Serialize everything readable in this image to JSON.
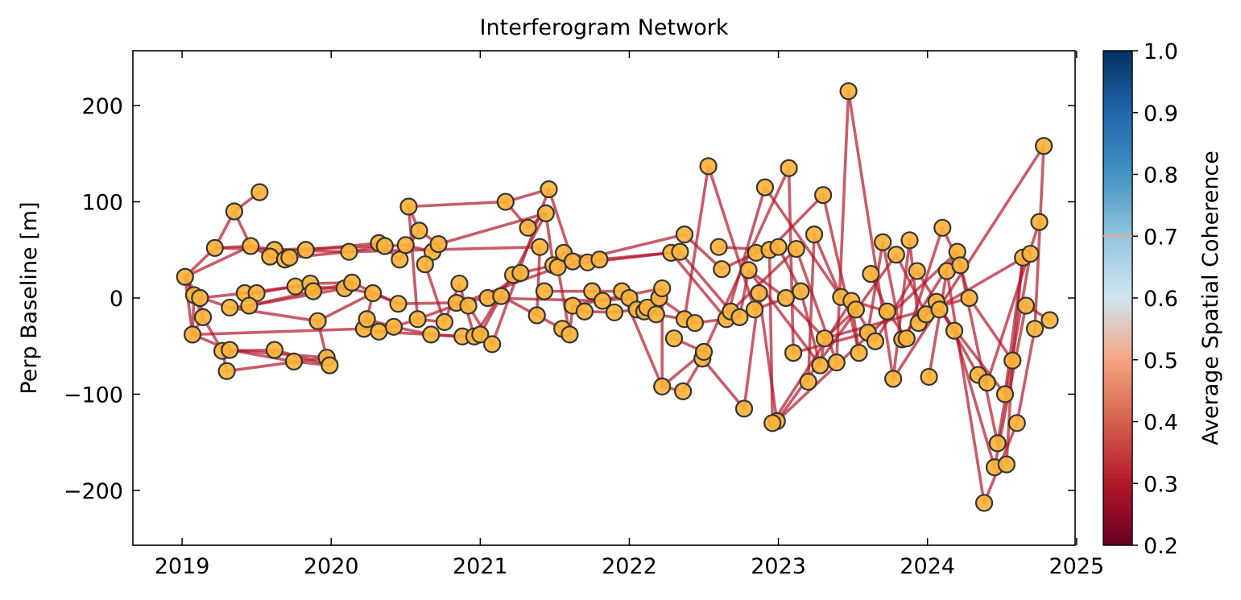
{
  "chart_data": {
    "type": "scatter",
    "title": "Interferogram Network",
    "xlabel": "",
    "ylabel": "Perp Baseline [m]",
    "xlim": [
      2018.67,
      2024.99
    ],
    "ylim": [
      -257,
      257
    ],
    "x_ticks": [
      2019,
      2020,
      2021,
      2022,
      2023,
      2024,
      2025
    ],
    "y_ticks": [
      -200,
      -100,
      0,
      100,
      200
    ],
    "y_tick_labels": [
      "−200",
      "−100",
      "0",
      "100",
      "200"
    ],
    "grid": false,
    "colorbar": {
      "label": "Average Spatial Coherence",
      "range": [
        0.2,
        1.0
      ],
      "ticks": [
        "0.2",
        "0.3",
        "0.4",
        "0.5",
        "0.6",
        "0.7",
        "0.8",
        "0.9",
        "1.0"
      ],
      "colormap": "RdBu",
      "masked_above": 0.7,
      "stops": [
        "#67001f",
        "#b2182b",
        "#d6604d",
        "#f4a582",
        "#d1e5f0",
        "#92c5de",
        "#4393c3",
        "#2166ac",
        "#053061"
      ]
    },
    "point_color": "#fbb33a",
    "point_edge_color": "#333333",
    "edge_color": "#b2182b",
    "acquisitions": [
      [
        2019.02,
        22
      ],
      [
        2019.08,
        3
      ],
      [
        2019.12,
        0
      ],
      [
        2019.22,
        52
      ],
      [
        2019.35,
        90
      ],
      [
        2019.52,
        110
      ],
      [
        2019.42,
        5
      ],
      [
        2019.5,
        5
      ],
      [
        2019.32,
        -10
      ],
      [
        2019.45,
        -8
      ],
      [
        2019.14,
        -20
      ],
      [
        2019.07,
        -38
      ],
      [
        2019.27,
        -55
      ],
      [
        2019.32,
        -54
      ],
      [
        2019.3,
        -76
      ],
      [
        2019.62,
        -54
      ],
      [
        2019.75,
        -66
      ],
      [
        2019.97,
        -62
      ],
      [
        2019.99,
        -70
      ],
      [
        2019.91,
        -24
      ],
      [
        2019.76,
        12
      ],
      [
        2019.86,
        15
      ],
      [
        2019.88,
        7
      ],
      [
        2020.09,
        10
      ],
      [
        2020.14,
        16
      ],
      [
        2019.46,
        54
      ],
      [
        2019.62,
        50
      ],
      [
        2019.59,
        43
      ],
      [
        2019.69,
        40
      ],
      [
        2019.72,
        42
      ],
      [
        2019.83,
        50
      ],
      [
        2020.12,
        48
      ],
      [
        2020.32,
        57
      ],
      [
        2020.36,
        54
      ],
      [
        2020.46,
        40
      ],
      [
        2020.5,
        55
      ],
      [
        2020.59,
        70
      ],
      [
        2020.68,
        48
      ],
      [
        2020.72,
        56
      ],
      [
        2020.63,
        35
      ],
      [
        2020.52,
        95
      ],
      [
        2020.28,
        5
      ],
      [
        2020.45,
        -6
      ],
      [
        2020.22,
        -32
      ],
      [
        2020.24,
        -22
      ],
      [
        2020.32,
        -35
      ],
      [
        2020.42,
        -30
      ],
      [
        2020.58,
        -22
      ],
      [
        2020.67,
        -38
      ],
      [
        2020.76,
        -25
      ],
      [
        2020.84,
        -5
      ],
      [
        2020.92,
        -8
      ],
      [
        2020.86,
        15
      ],
      [
        2020.88,
        -40
      ],
      [
        2020.96,
        -40
      ],
      [
        2021.0,
        -38
      ],
      [
        2021.05,
        0
      ],
      [
        2021.08,
        -48
      ],
      [
        2021.14,
        2
      ],
      [
        2021.22,
        24
      ],
      [
        2021.27,
        26
      ],
      [
        2021.17,
        100
      ],
      [
        2021.32,
        73
      ],
      [
        2021.44,
        88
      ],
      [
        2021.46,
        113
      ],
      [
        2021.4,
        53
      ],
      [
        2021.38,
        -18
      ],
      [
        2021.43,
        7
      ],
      [
        2021.49,
        34
      ],
      [
        2021.52,
        32
      ],
      [
        2021.56,
        47
      ],
      [
        2021.62,
        38
      ],
      [
        2021.72,
        37
      ],
      [
        2021.8,
        40
      ],
      [
        2021.55,
        -32
      ],
      [
        2021.6,
        -38
      ],
      [
        2021.62,
        -8
      ],
      [
        2021.7,
        -14
      ],
      [
        2021.75,
        7
      ],
      [
        2021.82,
        -3
      ],
      [
        2021.9,
        -15
      ],
      [
        2021.95,
        7
      ],
      [
        2022.0,
        0
      ],
      [
        2022.05,
        -12
      ],
      [
        2022.1,
        -14
      ],
      [
        2022.12,
        -10
      ],
      [
        2022.18,
        -17
      ],
      [
        2022.2,
        0
      ],
      [
        2022.22,
        10
      ],
      [
        2022.28,
        47
      ],
      [
        2022.34,
        48
      ],
      [
        2022.37,
        66
      ],
      [
        2022.22,
        -92
      ],
      [
        2022.3,
        -42
      ],
      [
        2022.36,
        -97
      ],
      [
        2022.37,
        -22
      ],
      [
        2022.44,
        -26
      ],
      [
        2022.49,
        -63
      ],
      [
        2022.5,
        -56
      ],
      [
        2022.53,
        137
      ],
      [
        2022.6,
        53
      ],
      [
        2022.62,
        30
      ],
      [
        2022.65,
        -22
      ],
      [
        2022.68,
        -14
      ],
      [
        2022.74,
        -20
      ],
      [
        2022.77,
        -115
      ],
      [
        2022.8,
        29
      ],
      [
        2022.84,
        -12
      ],
      [
        2022.85,
        47
      ],
      [
        2022.87,
        5
      ],
      [
        2022.91,
        115
      ],
      [
        2022.94,
        50
      ],
      [
        2023.0,
        53
      ],
      [
        2023.05,
        0
      ],
      [
        2023.07,
        135
      ],
      [
        2023.12,
        51
      ],
      [
        2023.1,
        -57
      ],
      [
        2022.99,
        -128
      ],
      [
        2022.96,
        -130
      ],
      [
        2023.15,
        7
      ],
      [
        2023.2,
        -87
      ],
      [
        2023.24,
        66
      ],
      [
        2023.28,
        -70
      ],
      [
        2023.3,
        107
      ],
      [
        2023.31,
        -42
      ],
      [
        2023.39,
        -67
      ],
      [
        2023.42,
        1
      ],
      [
        2023.47,
        215
      ],
      [
        2023.49,
        -3
      ],
      [
        2023.52,
        -12
      ],
      [
        2023.54,
        -57
      ],
      [
        2023.6,
        -36
      ],
      [
        2023.62,
        25
      ],
      [
        2023.65,
        -45
      ],
      [
        2023.7,
        58
      ],
      [
        2023.73,
        -14
      ],
      [
        2023.77,
        -84
      ],
      [
        2023.79,
        45
      ],
      [
        2023.83,
        -43
      ],
      [
        2023.86,
        -42
      ],
      [
        2023.88,
        60
      ],
      [
        2023.93,
        28
      ],
      [
        2023.94,
        -26
      ],
      [
        2023.99,
        -17
      ],
      [
        2024.01,
        -82
      ],
      [
        2024.06,
        -4
      ],
      [
        2024.08,
        -12
      ],
      [
        2024.1,
        73
      ],
      [
        2024.13,
        28
      ],
      [
        2024.18,
        -34
      ],
      [
        2024.2,
        48
      ],
      [
        2024.22,
        34
      ],
      [
        2024.28,
        0
      ],
      [
        2024.34,
        -80
      ],
      [
        2024.38,
        -213
      ],
      [
        2024.4,
        -88
      ],
      [
        2024.45,
        -176
      ],
      [
        2024.47,
        -151
      ],
      [
        2024.52,
        -100
      ],
      [
        2024.53,
        -173
      ],
      [
        2024.57,
        -65
      ],
      [
        2024.6,
        -130
      ],
      [
        2024.64,
        42
      ],
      [
        2024.66,
        -8
      ],
      [
        2024.69,
        46
      ],
      [
        2024.72,
        -32
      ],
      [
        2024.75,
        79
      ],
      [
        2024.78,
        158
      ],
      [
        2024.82,
        -23
      ]
    ],
    "pairs": [
      [
        0,
        1
      ],
      [
        0,
        2
      ],
      [
        0,
        3
      ],
      [
        0,
        25
      ],
      [
        0,
        11
      ],
      [
        0,
        10
      ],
      [
        1,
        2
      ],
      [
        1,
        8
      ],
      [
        1,
        11
      ],
      [
        2,
        6
      ],
      [
        2,
        10
      ],
      [
        3,
        4
      ],
      [
        3,
        25
      ],
      [
        3,
        31
      ],
      [
        4,
        5
      ],
      [
        4,
        25
      ],
      [
        6,
        7
      ],
      [
        6,
        20
      ],
      [
        7,
        21
      ],
      [
        8,
        9
      ],
      [
        8,
        19
      ],
      [
        9,
        22
      ],
      [
        10,
        11
      ],
      [
        10,
        12
      ],
      [
        11,
        13
      ],
      [
        11,
        43
      ],
      [
        12,
        14
      ],
      [
        12,
        15
      ],
      [
        13,
        16
      ],
      [
        13,
        17
      ],
      [
        14,
        17
      ],
      [
        15,
        18
      ],
      [
        16,
        18
      ],
      [
        17,
        19
      ],
      [
        19,
        41
      ],
      [
        20,
        23
      ],
      [
        20,
        22
      ],
      [
        21,
        24
      ],
      [
        22,
        24
      ],
      [
        23,
        41
      ],
      [
        24,
        42
      ],
      [
        25,
        26
      ],
      [
        25,
        27
      ],
      [
        26,
        28
      ],
      [
        27,
        29
      ],
      [
        28,
        30
      ],
      [
        29,
        31
      ],
      [
        30,
        32
      ],
      [
        31,
        33
      ],
      [
        32,
        34
      ],
      [
        33,
        35
      ],
      [
        34,
        36
      ],
      [
        35,
        37
      ],
      [
        36,
        38
      ],
      [
        37,
        39
      ],
      [
        38,
        63
      ],
      [
        39,
        49
      ],
      [
        40,
        36
      ],
      [
        40,
        61
      ],
      [
        41,
        44
      ],
      [
        41,
        42
      ],
      [
        42,
        50
      ],
      [
        43,
        45
      ],
      [
        44,
        46
      ],
      [
        45,
        47
      ],
      [
        46,
        48
      ],
      [
        47,
        49
      ],
      [
        48,
        53
      ],
      [
        49,
        52
      ],
      [
        50,
        56
      ],
      [
        51,
        57
      ],
      [
        52,
        54
      ],
      [
        53,
        55
      ],
      [
        54,
        59
      ],
      [
        55,
        58
      ],
      [
        56,
        60
      ],
      [
        57,
        64
      ],
      [
        58,
        66
      ],
      [
        59,
        63
      ],
      [
        60,
        68
      ],
      [
        61,
        62
      ],
      [
        62,
        63
      ],
      [
        61,
        64
      ],
      [
        63,
        68
      ],
      [
        64,
        71
      ],
      [
        65,
        66
      ],
      [
        66,
        74
      ],
      [
        67,
        78
      ],
      [
        68,
        70
      ],
      [
        69,
        72
      ],
      [
        70,
        73
      ],
      [
        71,
        91
      ],
      [
        72,
        89
      ],
      [
        73,
        90
      ],
      [
        74,
        75
      ],
      [
        75,
        76
      ],
      [
        76,
        77
      ],
      [
        77,
        80
      ],
      [
        78,
        81
      ],
      [
        79,
        82
      ],
      [
        80,
        83
      ],
      [
        81,
        86
      ],
      [
        82,
        84
      ],
      [
        83,
        85
      ],
      [
        84,
        87
      ],
      [
        85,
        88
      ],
      [
        86,
        95
      ],
      [
        87,
        96
      ],
      [
        88,
        92
      ],
      [
        89,
        102
      ],
      [
        90,
        103
      ],
      [
        91,
        101
      ],
      [
        92,
        94
      ],
      [
        93,
        98
      ],
      [
        94,
        97
      ],
      [
        95,
        99
      ],
      [
        96,
        104
      ],
      [
        97,
        105
      ],
      [
        98,
        114
      ],
      [
        99,
        107
      ],
      [
        100,
        111
      ],
      [
        101,
        108
      ],
      [
        102,
        110
      ],
      [
        103,
        115
      ],
      [
        104,
        106
      ],
      [
        105,
        109
      ],
      [
        106,
        122
      ],
      [
        107,
        113
      ],
      [
        108,
        112
      ],
      [
        109,
        117
      ],
      [
        110,
        126
      ],
      [
        111,
        118
      ],
      [
        111,
        123
      ],
      [
        112,
        119
      ],
      [
        113,
        124
      ],
      [
        114,
        116
      ],
      [
        115,
        125
      ],
      [
        116,
        131
      ],
      [
        117,
        137
      ],
      [
        118,
        128
      ],
      [
        119,
        122
      ],
      [
        120,
        121
      ],
      [
        121,
        126
      ],
      [
        122,
        124
      ],
      [
        123,
        130
      ],
      [
        124,
        129
      ],
      [
        125,
        127
      ],
      [
        127,
        136
      ],
      [
        128,
        130
      ],
      [
        129,
        133
      ],
      [
        131,
        134
      ],
      [
        132,
        135
      ],
      [
        133,
        141
      ],
      [
        134,
        138
      ],
      [
        135,
        139
      ],
      [
        136,
        140
      ],
      [
        137,
        143
      ],
      [
        138,
        150
      ],
      [
        139,
        147
      ],
      [
        140,
        142
      ],
      [
        141,
        149
      ],
      [
        142,
        145
      ],
      [
        143,
        146
      ],
      [
        144,
        148
      ],
      [
        145,
        153
      ],
      [
        146,
        158
      ],
      [
        147,
        151
      ],
      [
        148,
        154
      ],
      [
        149,
        156
      ],
      [
        150,
        157
      ],
      [
        151,
        152
      ],
      [
        152,
        160
      ],
      [
        153,
        155
      ],
      [
        154,
        161
      ],
      [
        155,
        166
      ],
      [
        156,
        163
      ],
      [
        157,
        164
      ],
      [
        158,
        162
      ],
      [
        159,
        160
      ],
      [
        160,
        162
      ],
      [
        161,
        165
      ],
      [
        162,
        170
      ],
      [
        163,
        168
      ],
      [
        164,
        169
      ],
      [
        165,
        167
      ],
      [
        166,
        169
      ],
      [
        167,
        170
      ],
      [
        168,
        171
      ],
      [
        169,
        172
      ],
      [
        170,
        173
      ],
      [
        171,
        174
      ],
      [
        172,
        173
      ],
      [
        173,
        174
      ],
      [
        168,
        174
      ],
      [
        158,
        171
      ],
      [
        160,
        173
      ],
      [
        143,
        164
      ],
      [
        150,
        172
      ],
      [
        136,
        167
      ],
      [
        124,
        152
      ],
      [
        117,
        150
      ],
      [
        106,
        113
      ],
      [
        92,
        98
      ],
      [
        81,
        92
      ],
      [
        76,
        88
      ],
      [
        56,
        79
      ],
      [
        69,
        75
      ],
      [
        40,
        47
      ],
      [
        26,
        33
      ],
      [
        45,
        53
      ],
      [
        9,
        23
      ],
      [
        31,
        65
      ],
      [
        47,
        69
      ],
      [
        128,
        135
      ]
    ]
  }
}
